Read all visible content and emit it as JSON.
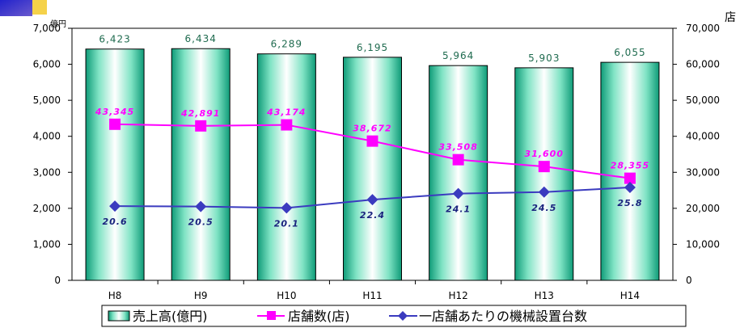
{
  "chart_data": {
    "type": "bar",
    "categories": [
      "H8",
      "H9",
      "H10",
      "H11",
      "H12",
      "H13",
      "H14"
    ],
    "left_axis": {
      "unit": "億円",
      "ylim": [
        0,
        7000
      ],
      "ticks": [
        "0",
        "1,000",
        "2,000",
        "3,000",
        "4,000",
        "5,000",
        "6,000",
        "7,000"
      ]
    },
    "right_axis": {
      "unit": "店",
      "ylim": [
        0,
        70000
      ],
      "ticks": [
        "0",
        "10,000",
        "20,000",
        "30,000",
        "40,000",
        "50,000",
        "60,000",
        "70,000"
      ]
    },
    "series": [
      {
        "name": "売上高(億円)",
        "type": "bar",
        "axis": "left",
        "color": "#2fbf8f",
        "values": [
          6423,
          6434,
          6289,
          6195,
          5964,
          5903,
          6055
        ],
        "labels": [
          "6,423",
          "6,434",
          "6,289",
          "6,195",
          "5,964",
          "5,903",
          "6,055"
        ]
      },
      {
        "name": "店舗数(店)",
        "type": "line",
        "axis": "right",
        "color": "#ff00ff",
        "values": [
          43345,
          42891,
          43174,
          38672,
          33508,
          31600,
          28355
        ],
        "labels": [
          "43,345",
          "42,891",
          "43,174",
          "38,672",
          "33,508",
          "31,600",
          "28,355"
        ]
      },
      {
        "name": "一店舗あたりの機械設置台数",
        "type": "line",
        "axis": "right_scaled_x1000",
        "color": "#3b3bbf",
        "values": [
          20.6,
          20.5,
          20.1,
          22.4,
          24.1,
          24.5,
          25.8
        ],
        "labels": [
          "20.6",
          "20.5",
          "20.1",
          "22.4",
          "24.1",
          "24.5",
          "25.8"
        ]
      }
    ],
    "grid": false,
    "legend_position": "bottom"
  }
}
